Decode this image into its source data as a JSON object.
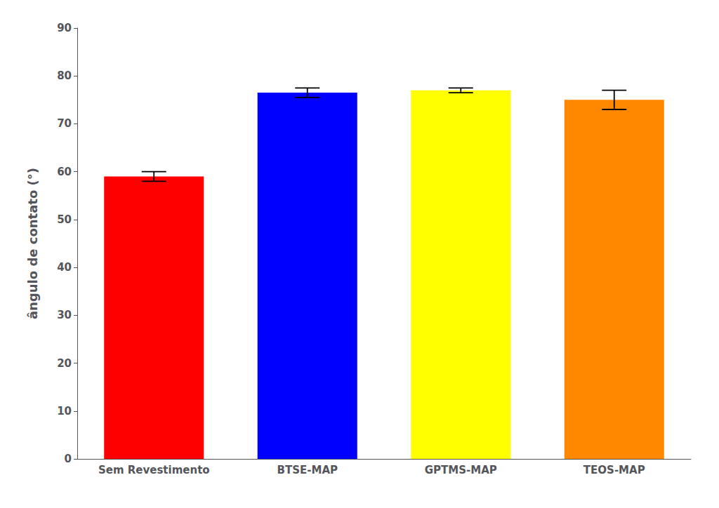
{
  "chart_data": {
    "type": "bar",
    "categories": [
      "Sem Revestimento",
      "BTSE-MAP",
      "GPTMS-MAP",
      "TEOS-MAP"
    ],
    "values": [
      59.0,
      76.5,
      77.0,
      75.0
    ],
    "errors": [
      1.0,
      1.0,
      0.5,
      2.0
    ],
    "colors": [
      "#ff0000",
      "#0000ff",
      "#ffff00",
      "#ff8800"
    ],
    "ylabel": "ângulo de contato (°)",
    "ylim": [
      0,
      90
    ],
    "yticks": [
      0,
      10,
      20,
      30,
      40,
      50,
      60,
      70,
      80,
      90
    ],
    "grid": false
  }
}
